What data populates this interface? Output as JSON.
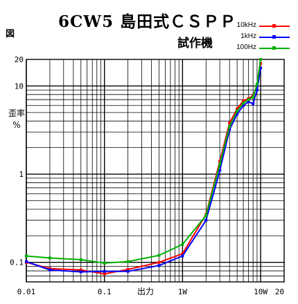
{
  "figure_label": "図",
  "chart_data": {
    "type": "line",
    "title": "6CW5 島田式ＣＳＰＰ",
    "subtitle": "試作機",
    "xlabel": "出力",
    "ylabel": "歪率\n%",
    "xscale": "log",
    "yscale": "log",
    "xlim": [
      0.01,
      20
    ],
    "ylim": [
      0.06,
      20
    ],
    "grid": true,
    "legend_position": "top-right",
    "x_tick_labels": [
      "0.01",
      "0.1",
      "1W",
      "10W",
      "20"
    ],
    "x_tick_values": [
      0.01,
      0.1,
      1,
      10,
      20
    ],
    "y_tick_labels": [
      "0.1",
      "1",
      "10",
      "20"
    ],
    "y_tick_values": [
      0.1,
      1,
      10,
      20
    ],
    "series": [
      {
        "name": "10kHz",
        "color": "#ff0000",
        "points": [
          [
            0.01,
            0.1
          ],
          [
            0.02,
            0.085
          ],
          [
            0.05,
            0.082
          ],
          [
            0.1,
            0.074
          ],
          [
            0.2,
            0.083
          ],
          [
            0.5,
            0.1
          ],
          [
            1,
            0.125
          ],
          [
            2,
            0.35
          ],
          [
            3,
            1.4
          ],
          [
            4,
            3.8
          ],
          [
            5,
            5.5
          ],
          [
            6,
            6.8
          ],
          [
            7,
            7.2
          ],
          [
            8,
            7.8
          ],
          [
            9,
            10
          ],
          [
            10,
            18
          ]
        ]
      },
      {
        "name": "1kHz",
        "color": "#0000ff",
        "points": [
          [
            0.01,
            0.102
          ],
          [
            0.02,
            0.082
          ],
          [
            0.05,
            0.078
          ],
          [
            0.1,
            0.079
          ],
          [
            0.2,
            0.079
          ],
          [
            0.5,
            0.092
          ],
          [
            1,
            0.118
          ],
          [
            2,
            0.3
          ],
          [
            3,
            1.1
          ],
          [
            4,
            3.2
          ],
          [
            5,
            4.8
          ],
          [
            6,
            6.0
          ],
          [
            7,
            6.6
          ],
          [
            8,
            6.3
          ],
          [
            9,
            9
          ],
          [
            10,
            16
          ]
        ]
      },
      {
        "name": "100Hz",
        "color": "#00b000",
        "points": [
          [
            0.01,
            0.118
          ],
          [
            0.02,
            0.112
          ],
          [
            0.05,
            0.107
          ],
          [
            0.1,
            0.098
          ],
          [
            0.2,
            0.102
          ],
          [
            0.5,
            0.12
          ],
          [
            1,
            0.16
          ],
          [
            2,
            0.34
          ],
          [
            3,
            1.3
          ],
          [
            4,
            3.5
          ],
          [
            5,
            5.2
          ],
          [
            6,
            6.4
          ],
          [
            7,
            7.0
          ],
          [
            8,
            7.5
          ],
          [
            9,
            10.5
          ],
          [
            10,
            20
          ]
        ]
      }
    ]
  }
}
